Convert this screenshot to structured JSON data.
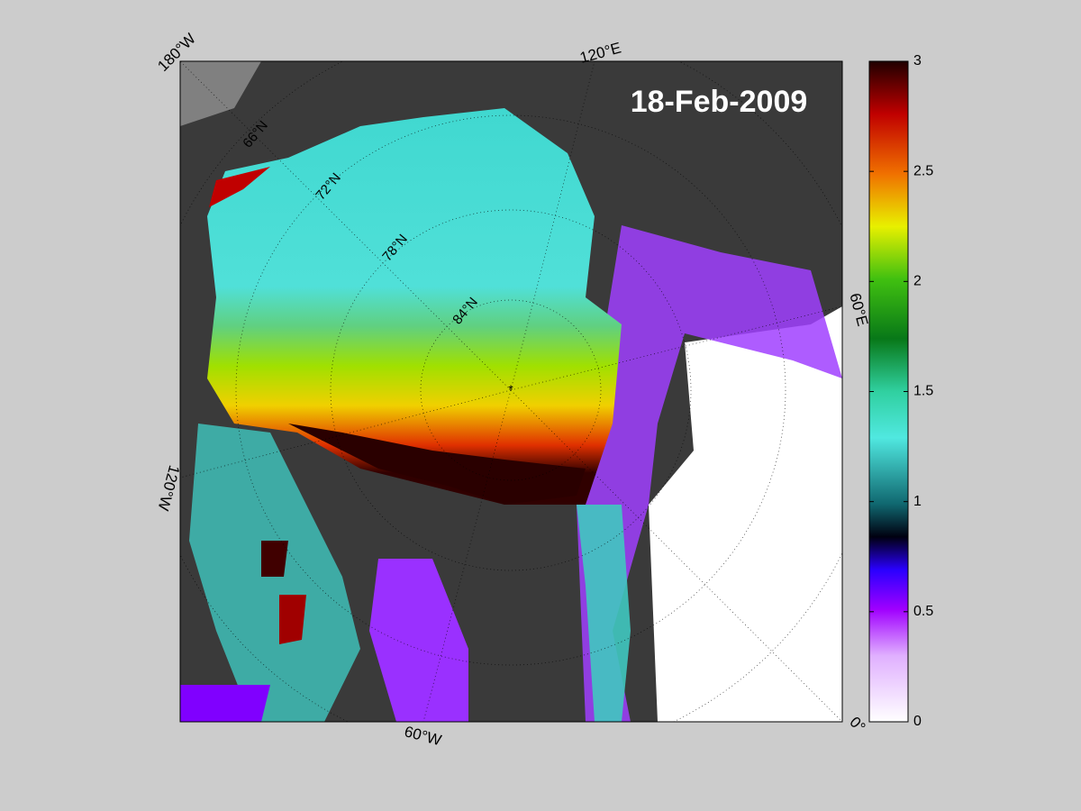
{
  "title": "18-Feb-2009",
  "longitude_labels": [
    "180°W",
    "120°E",
    "60°E",
    "0°",
    "60°W",
    "120°W"
  ],
  "latitude_labels": [
    "66°N",
    "72°N",
    "78°N",
    "84°N"
  ],
  "colorbar": {
    "lim": [
      0,
      3
    ],
    "ticks": [
      0,
      0.5,
      1,
      1.5,
      2,
      2.5,
      3
    ]
  }
}
